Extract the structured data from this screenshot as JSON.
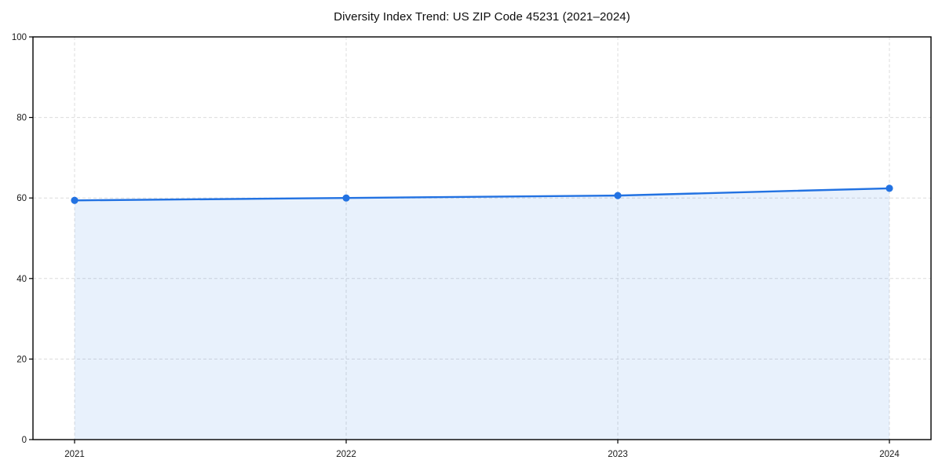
{
  "chart_data": {
    "type": "area",
    "title": "Diversity Index Trend: US ZIP Code 45231 (2021–2024)",
    "x": [
      2021,
      2022,
      2023,
      2024
    ],
    "series": [
      {
        "name": "Diversity Index",
        "values": [
          59.4,
          60.0,
          60.6,
          62.4
        ]
      }
    ],
    "xlabel": "",
    "ylabel": "",
    "ylim": [
      0,
      100
    ],
    "yticks": [
      0,
      20,
      40,
      60,
      80,
      100
    ],
    "grid": true,
    "grid_style": "dashed",
    "legend_position": "none",
    "line_color": "#2272e2",
    "marker_color": "#2272e2",
    "fill_color": "#2272e2",
    "fill_opacity": 0.1,
    "grid_color": "#dcdcdc",
    "axis_color": "#000000",
    "background_color": "#ffffff"
  }
}
